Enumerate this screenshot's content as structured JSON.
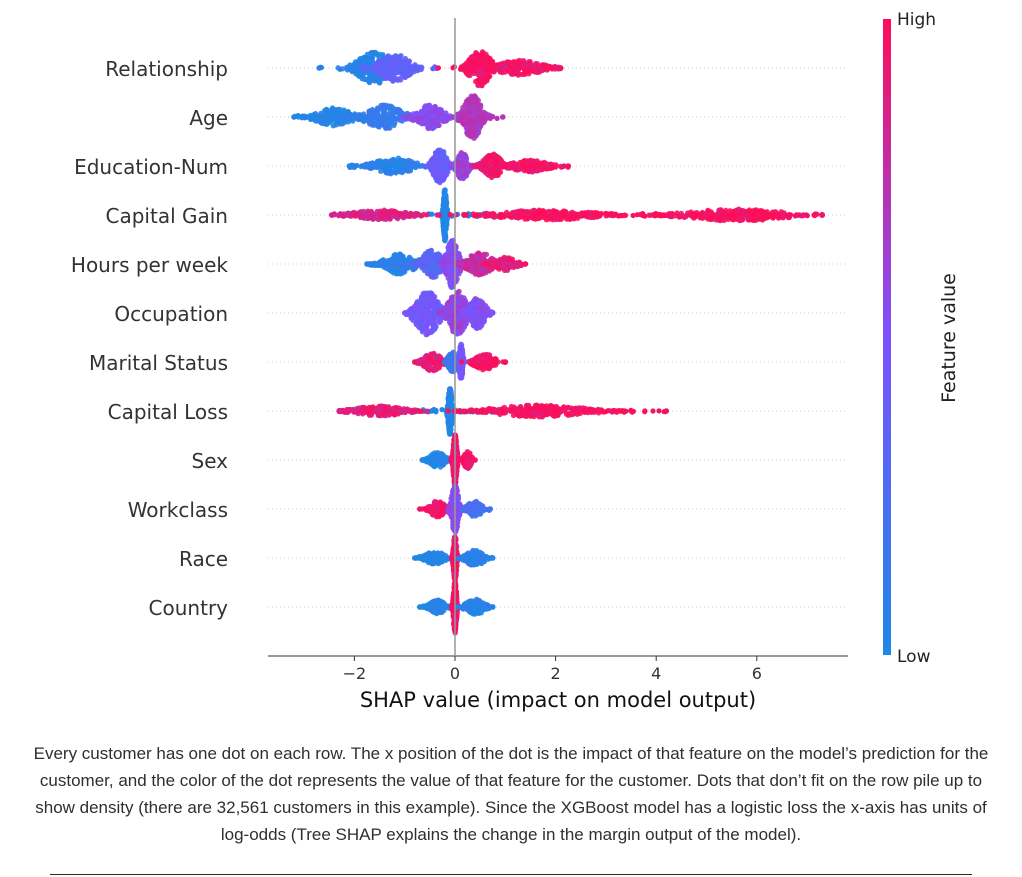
{
  "chart_data": {
    "type": "scatter",
    "subtype": "shap-beeswarm",
    "title": "",
    "xlabel": "SHAP value (impact on model output)",
    "ylabel": "",
    "xlim": [
      -3.7,
      7.8
    ],
    "xticks": [
      -2,
      0,
      2,
      4,
      6
    ],
    "xtick_labels": [
      "−2",
      "0",
      "2",
      "4",
      "6"
    ],
    "grid": false,
    "features": [
      {
        "name": "Relationship",
        "min": -2.7,
        "max": 2.1,
        "clusters": [
          {
            "x": -1.6,
            "w": 0.55,
            "h": 16,
            "c": 0.05
          },
          {
            "x": -1.2,
            "w": 0.5,
            "h": 14,
            "c": 0.35
          },
          {
            "x": 0.5,
            "w": 0.35,
            "h": 18,
            "c": 0.97
          },
          {
            "x": 1.3,
            "w": 0.7,
            "h": 8,
            "c": 0.95
          }
        ]
      },
      {
        "name": "Age",
        "min": -3.2,
        "max": 0.95,
        "clusters": [
          {
            "x": -2.4,
            "w": 0.6,
            "h": 9,
            "c": 0.02
          },
          {
            "x": -1.4,
            "w": 0.6,
            "h": 12,
            "c": 0.12
          },
          {
            "x": -0.5,
            "w": 0.45,
            "h": 12,
            "c": 0.55
          },
          {
            "x": 0.35,
            "w": 0.3,
            "h": 22,
            "c": 0.7
          }
        ]
      },
      {
        "name": "Education-Num",
        "min": -2.1,
        "max": 2.25,
        "clusters": [
          {
            "x": -1.2,
            "w": 0.65,
            "h": 8,
            "c": 0.05
          },
          {
            "x": -0.3,
            "w": 0.22,
            "h": 18,
            "c": 0.4
          },
          {
            "x": 0.15,
            "w": 0.18,
            "h": 14,
            "c": 0.62
          },
          {
            "x": 0.75,
            "w": 0.3,
            "h": 12,
            "c": 0.93
          },
          {
            "x": 1.5,
            "w": 0.6,
            "h": 6,
            "c": 0.97
          }
        ]
      },
      {
        "name": "Capital Gain",
        "min": -2.45,
        "max": 7.3,
        "clusters": [
          {
            "x": -1.5,
            "w": 0.9,
            "h": 5,
            "c": 0.85
          },
          {
            "x": -0.2,
            "w": 0.05,
            "h": 26,
            "c": 0.0
          },
          {
            "x": 1.8,
            "w": 1.6,
            "h": 5,
            "c": 0.98
          },
          {
            "x": 5.6,
            "w": 1.6,
            "h": 6,
            "c": 0.99
          }
        ]
      },
      {
        "name": "Hours per week",
        "min": -1.75,
        "max": 1.4,
        "clusters": [
          {
            "x": -1.1,
            "w": 0.5,
            "h": 10,
            "c": 0.08
          },
          {
            "x": -0.45,
            "w": 0.35,
            "h": 14,
            "c": 0.3
          },
          {
            "x": -0.05,
            "w": 0.2,
            "h": 24,
            "c": 0.55
          },
          {
            "x": 0.5,
            "w": 0.4,
            "h": 12,
            "c": 0.78
          },
          {
            "x": 1.0,
            "w": 0.35,
            "h": 7,
            "c": 0.9
          }
        ]
      },
      {
        "name": "Occupation",
        "min": -1.0,
        "max": 0.75,
        "clusters": [
          {
            "x": -0.55,
            "w": 0.38,
            "h": 22,
            "c": 0.45
          },
          {
            "x": 0.05,
            "w": 0.3,
            "h": 22,
            "c": 0.6
          },
          {
            "x": 0.45,
            "w": 0.25,
            "h": 16,
            "c": 0.5
          }
        ]
      },
      {
        "name": "Marital Status",
        "min": -0.8,
        "max": 1.0,
        "clusters": [
          {
            "x": -0.45,
            "w": 0.3,
            "h": 9,
            "c": 0.92
          },
          {
            "x": -0.05,
            "w": 0.15,
            "h": 10,
            "c": 0.15
          },
          {
            "x": 0.12,
            "w": 0.06,
            "h": 18,
            "c": 0.45
          },
          {
            "x": 0.6,
            "w": 0.35,
            "h": 8,
            "c": 0.95
          }
        ]
      },
      {
        "name": "Capital Loss",
        "min": -2.3,
        "max": 4.2,
        "clusters": [
          {
            "x": -1.5,
            "w": 0.8,
            "h": 5,
            "c": 0.9
          },
          {
            "x": -0.1,
            "w": 0.06,
            "h": 24,
            "c": 0.02
          },
          {
            "x": 1.7,
            "w": 1.5,
            "h": 6,
            "c": 0.97
          }
        ]
      },
      {
        "name": "Sex",
        "min": -0.65,
        "max": 0.4,
        "clusters": [
          {
            "x": -0.35,
            "w": 0.25,
            "h": 8,
            "c": 0.02
          },
          {
            "x": 0.0,
            "w": 0.06,
            "h": 26,
            "c": 0.95
          },
          {
            "x": 0.25,
            "w": 0.12,
            "h": 9,
            "c": 0.95
          }
        ]
      },
      {
        "name": "Workclass",
        "min": -0.7,
        "max": 0.7,
        "clusters": [
          {
            "x": -0.35,
            "w": 0.25,
            "h": 8,
            "c": 0.95
          },
          {
            "x": 0.0,
            "w": 0.12,
            "h": 24,
            "c": 0.55
          },
          {
            "x": 0.4,
            "w": 0.25,
            "h": 8,
            "c": 0.2
          }
        ]
      },
      {
        "name": "Race",
        "min": -0.8,
        "max": 0.75,
        "clusters": [
          {
            "x": -0.4,
            "w": 0.3,
            "h": 7,
            "c": 0.03
          },
          {
            "x": 0.0,
            "w": 0.05,
            "h": 24,
            "c": 0.97
          },
          {
            "x": 0.4,
            "w": 0.3,
            "h": 8,
            "c": 0.06
          }
        ]
      },
      {
        "name": "Country",
        "min": -0.7,
        "max": 0.75,
        "clusters": [
          {
            "x": -0.35,
            "w": 0.25,
            "h": 7,
            "c": 0.03
          },
          {
            "x": 0.0,
            "w": 0.05,
            "h": 26,
            "c": 0.97
          },
          {
            "x": 0.4,
            "w": 0.3,
            "h": 8,
            "c": 0.05
          }
        ]
      }
    ],
    "colorbar": {
      "label": "Feature value",
      "high_label": "High",
      "low_label": "Low",
      "high_color": "#ff0d57",
      "low_color": "#1e88e5",
      "mid_color": "#7c52ff"
    }
  },
  "caption": "Every customer has one dot on each row. The x position of the dot is the impact of that feature on the model’s prediction for the customer, and the color of the dot represents the value of that feature for the customer. Dots that don’t fit on the row pile up to show density (there are 32,561 customers in this example). Since the XGBoost model has a logistic loss the x-axis has units of log-odds (Tree SHAP explains the change in the margin output of the model)."
}
